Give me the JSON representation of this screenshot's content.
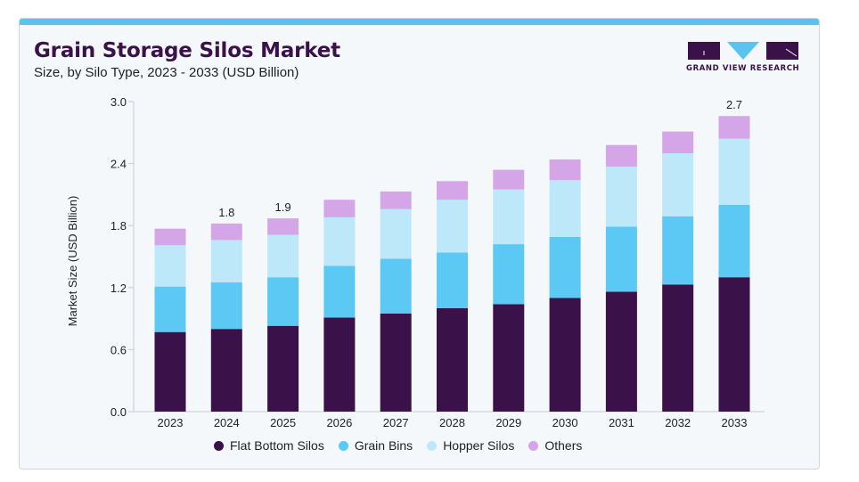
{
  "header": {
    "title": "Grain Storage Silos Market",
    "subtitle": "Size, by Silo Type, 2023 - 2033 (USD Billion)"
  },
  "logo": {
    "text": "GRAND VIEW RESEARCH",
    "icon": "grand-view-research-logo",
    "colors": {
      "dark": "#3a1148",
      "accent": "#5bc4ee"
    }
  },
  "colors": {
    "accent_bar": "#5bc4ee",
    "title": "#3a1148"
  },
  "chart_data": {
    "type": "bar",
    "stacked": true,
    "title": "Grain Storage Silos Market",
    "subtitle": "Size, by Silo Type, 2023 - 2033 (USD Billion)",
    "xlabel": "",
    "ylabel": "Market Size (USD Billion)",
    "ylim": [
      0,
      3.0
    ],
    "yticks": [
      "0.0",
      "0.6",
      "1.2",
      "1.8",
      "2.4",
      "3.0"
    ],
    "ytick_values": [
      0,
      0.6,
      1.2,
      1.8,
      2.4,
      3.0
    ],
    "grid": false,
    "legend_position": "bottom",
    "categories": [
      "2023",
      "2024",
      "2025",
      "2026",
      "2027",
      "2028",
      "2029",
      "2030",
      "2031",
      "2032",
      "2033"
    ],
    "series": [
      {
        "name": "Flat Bottom Silos",
        "color": "#3a1148",
        "values": [
          0.77,
          0.8,
          0.83,
          0.91,
          0.95,
          1.0,
          1.04,
          1.1,
          1.16,
          1.23,
          1.3
        ]
      },
      {
        "name": "Grain Bins",
        "color": "#5bc9f3",
        "values": [
          0.44,
          0.45,
          0.47,
          0.5,
          0.53,
          0.54,
          0.58,
          0.59,
          0.63,
          0.66,
          0.7
        ]
      },
      {
        "name": "Hopper Silos",
        "color": "#bde8f9",
        "values": [
          0.4,
          0.41,
          0.41,
          0.47,
          0.48,
          0.51,
          0.53,
          0.55,
          0.58,
          0.61,
          0.64
        ]
      },
      {
        "name": "Others",
        "color": "#d4a6e8",
        "values": [
          0.16,
          0.16,
          0.16,
          0.17,
          0.17,
          0.18,
          0.19,
          0.2,
          0.21,
          0.21,
          0.22
        ]
      }
    ],
    "data_labels": [
      {
        "category": "2024",
        "text": "1.8"
      },
      {
        "category": "2025",
        "text": "1.9"
      },
      {
        "category": "2033",
        "text": "2.7"
      }
    ]
  }
}
